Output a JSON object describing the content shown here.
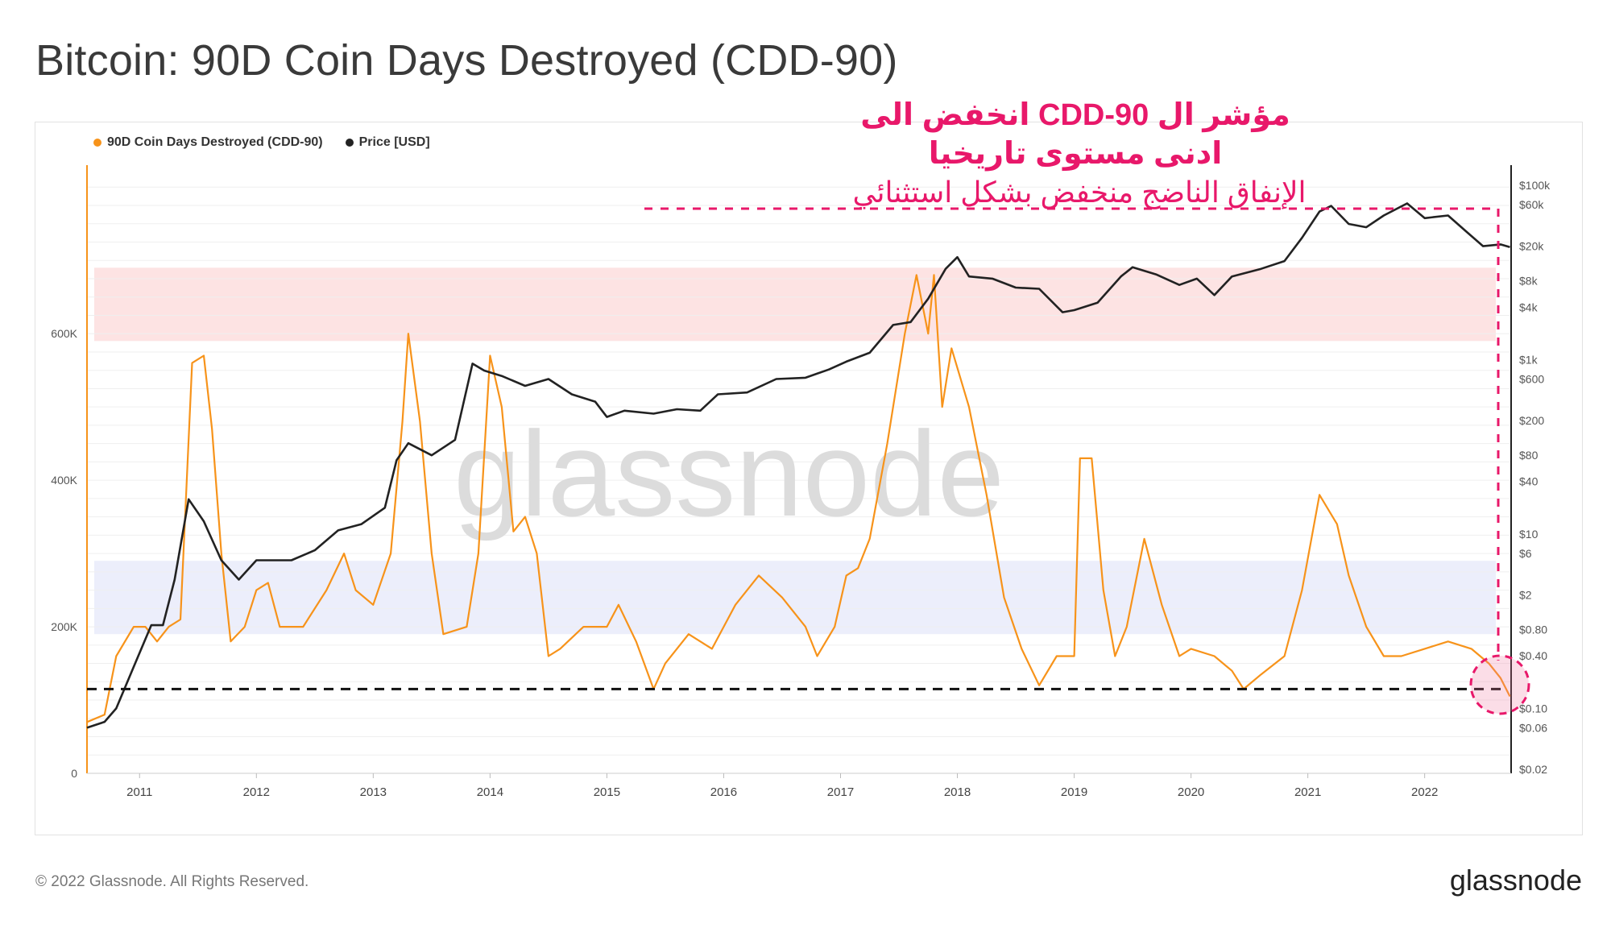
{
  "title": "Bitcoin: 90D Coin Days Destroyed (CDD-90)",
  "legend": [
    {
      "label": "90D Coin Days Destroyed (CDD-90)",
      "color": "#f7931a"
    },
    {
      "label": "Price [USD]",
      "color": "#222222"
    }
  ],
  "annotations": {
    "line1": "مؤشر ال CDD-90 انخفض الى",
    "line2": "ادنى مستوى تاريخيا",
    "line3": "الإنفاق الناضج منخفض بشكل استثنائي",
    "color": "#e8186a"
  },
  "footer": {
    "copyright": "© 2022 Glassnode. All Rights Reserved.",
    "logo": "glassnode"
  },
  "watermark": "glassnode",
  "chart_data": {
    "type": "line",
    "title": "Bitcoin: 90D Coin Days Destroyed (CDD-90)",
    "x_ticks": [
      "2011",
      "2012",
      "2013",
      "2014",
      "2015",
      "2016",
      "2017",
      "2018",
      "2019",
      "2020",
      "2021",
      "2022"
    ],
    "x_range": [
      2010.55,
      2022.74
    ],
    "left_axis": {
      "ticks": [
        "0",
        "200K",
        "400K",
        "600K"
      ],
      "tick_values": [
        0,
        200000,
        400000,
        600000
      ],
      "range": [
        0,
        830000
      ]
    },
    "right_axis": {
      "scale": "log",
      "ticks": [
        "$100k",
        "$60k",
        "$20k",
        "$8k",
        "$4k",
        "$1k",
        "$600",
        "$200",
        "$80",
        "$40",
        "$10",
        "$6",
        "$2",
        "$0.80",
        "$0.40",
        "$0.10",
        "$0.06",
        "$0.02"
      ],
      "tick_values": [
        100000,
        60000,
        20000,
        8000,
        4000,
        1000,
        600,
        200,
        80,
        40,
        10,
        6,
        2,
        0.8,
        0.4,
        0.1,
        0.06,
        0.02
      ]
    },
    "bands": [
      {
        "name": "high",
        "from": 590000,
        "to": 690000,
        "color": "#fde3e3"
      },
      {
        "name": "low",
        "from": 190000,
        "to": 290000,
        "color": "#eceefb"
      }
    ],
    "reference_line": 115000,
    "series": [
      {
        "name": "90D Coin Days Destroyed (CDD-90)",
        "color": "#f7931a",
        "axis": "left",
        "points": [
          [
            2010.55,
            70000
          ],
          [
            2010.7,
            80000
          ],
          [
            2010.8,
            160000
          ],
          [
            2010.95,
            200000
          ],
          [
            2011.05,
            200000
          ],
          [
            2011.15,
            180000
          ],
          [
            2011.25,
            200000
          ],
          [
            2011.35,
            210000
          ],
          [
            2011.45,
            560000
          ],
          [
            2011.55,
            570000
          ],
          [
            2011.62,
            470000
          ],
          [
            2011.7,
            300000
          ],
          [
            2011.78,
            180000
          ],
          [
            2011.9,
            200000
          ],
          [
            2012.0,
            250000
          ],
          [
            2012.1,
            260000
          ],
          [
            2012.2,
            200000
          ],
          [
            2012.4,
            200000
          ],
          [
            2012.6,
            250000
          ],
          [
            2012.75,
            300000
          ],
          [
            2012.85,
            250000
          ],
          [
            2013.0,
            230000
          ],
          [
            2013.15,
            300000
          ],
          [
            2013.25,
            480000
          ],
          [
            2013.3,
            600000
          ],
          [
            2013.4,
            480000
          ],
          [
            2013.5,
            300000
          ],
          [
            2013.6,
            190000
          ],
          [
            2013.8,
            200000
          ],
          [
            2013.9,
            300000
          ],
          [
            2014.0,
            570000
          ],
          [
            2014.1,
            500000
          ],
          [
            2014.2,
            330000
          ],
          [
            2014.3,
            350000
          ],
          [
            2014.4,
            300000
          ],
          [
            2014.5,
            160000
          ],
          [
            2014.6,
            170000
          ],
          [
            2014.8,
            200000
          ],
          [
            2015.0,
            200000
          ],
          [
            2015.1,
            230000
          ],
          [
            2015.25,
            180000
          ],
          [
            2015.4,
            115000
          ],
          [
            2015.5,
            150000
          ],
          [
            2015.7,
            190000
          ],
          [
            2015.9,
            170000
          ],
          [
            2016.1,
            230000
          ],
          [
            2016.3,
            270000
          ],
          [
            2016.5,
            240000
          ],
          [
            2016.7,
            200000
          ],
          [
            2016.8,
            160000
          ],
          [
            2016.95,
            200000
          ],
          [
            2017.05,
            270000
          ],
          [
            2017.15,
            280000
          ],
          [
            2017.25,
            320000
          ],
          [
            2017.4,
            450000
          ],
          [
            2017.55,
            600000
          ],
          [
            2017.65,
            680000
          ],
          [
            2017.75,
            600000
          ],
          [
            2017.8,
            680000
          ],
          [
            2017.87,
            500000
          ],
          [
            2017.95,
            580000
          ],
          [
            2018.1,
            500000
          ],
          [
            2018.25,
            380000
          ],
          [
            2018.4,
            240000
          ],
          [
            2018.55,
            170000
          ],
          [
            2018.7,
            120000
          ],
          [
            2018.85,
            160000
          ],
          [
            2019.0,
            160000
          ],
          [
            2019.05,
            430000
          ],
          [
            2019.15,
            430000
          ],
          [
            2019.25,
            250000
          ],
          [
            2019.35,
            160000
          ],
          [
            2019.45,
            200000
          ],
          [
            2019.6,
            320000
          ],
          [
            2019.75,
            230000
          ],
          [
            2019.9,
            160000
          ],
          [
            2020.0,
            170000
          ],
          [
            2020.2,
            160000
          ],
          [
            2020.35,
            140000
          ],
          [
            2020.45,
            115000
          ],
          [
            2020.6,
            135000
          ],
          [
            2020.8,
            160000
          ],
          [
            2020.95,
            250000
          ],
          [
            2021.1,
            380000
          ],
          [
            2021.25,
            340000
          ],
          [
            2021.35,
            270000
          ],
          [
            2021.5,
            200000
          ],
          [
            2021.65,
            160000
          ],
          [
            2021.8,
            160000
          ],
          [
            2022.0,
            170000
          ],
          [
            2022.2,
            180000
          ],
          [
            2022.4,
            170000
          ],
          [
            2022.55,
            150000
          ],
          [
            2022.65,
            130000
          ],
          [
            2022.73,
            105000
          ]
        ]
      },
      {
        "name": "Price [USD]",
        "color": "#222222",
        "axis": "right",
        "points": [
          [
            2010.55,
            0.06
          ],
          [
            2010.7,
            0.07
          ],
          [
            2010.8,
            0.1
          ],
          [
            2010.95,
            0.3
          ],
          [
            2011.1,
            0.9
          ],
          [
            2011.2,
            0.9
          ],
          [
            2011.3,
            3
          ],
          [
            2011.42,
            25
          ],
          [
            2011.55,
            14
          ],
          [
            2011.7,
            5
          ],
          [
            2011.85,
            3
          ],
          [
            2012.0,
            5
          ],
          [
            2012.3,
            5
          ],
          [
            2012.5,
            6.5
          ],
          [
            2012.7,
            11
          ],
          [
            2012.9,
            13
          ],
          [
            2013.1,
            20
          ],
          [
            2013.2,
            70
          ],
          [
            2013.3,
            110
          ],
          [
            2013.5,
            80
          ],
          [
            2013.7,
            120
          ],
          [
            2013.85,
            900
          ],
          [
            2013.95,
            750
          ],
          [
            2014.1,
            650
          ],
          [
            2014.3,
            500
          ],
          [
            2014.5,
            600
          ],
          [
            2014.7,
            400
          ],
          [
            2014.9,
            330
          ],
          [
            2015.0,
            220
          ],
          [
            2015.15,
            260
          ],
          [
            2015.4,
            240
          ],
          [
            2015.6,
            270
          ],
          [
            2015.8,
            260
          ],
          [
            2015.95,
            400
          ],
          [
            2016.2,
            420
          ],
          [
            2016.45,
            600
          ],
          [
            2016.7,
            620
          ],
          [
            2016.9,
            770
          ],
          [
            2017.05,
            950
          ],
          [
            2017.25,
            1200
          ],
          [
            2017.45,
            2500
          ],
          [
            2017.6,
            2700
          ],
          [
            2017.75,
            5000
          ],
          [
            2017.9,
            11000
          ],
          [
            2018.0,
            15000
          ],
          [
            2018.1,
            9000
          ],
          [
            2018.3,
            8500
          ],
          [
            2018.5,
            6700
          ],
          [
            2018.7,
            6500
          ],
          [
            2018.9,
            3500
          ],
          [
            2019.0,
            3700
          ],
          [
            2019.2,
            4500
          ],
          [
            2019.4,
            9000
          ],
          [
            2019.5,
            11500
          ],
          [
            2019.7,
            9500
          ],
          [
            2019.9,
            7200
          ],
          [
            2020.05,
            8500
          ],
          [
            2020.2,
            5500
          ],
          [
            2020.35,
            9000
          ],
          [
            2020.6,
            11000
          ],
          [
            2020.8,
            13500
          ],
          [
            2020.95,
            25000
          ],
          [
            2021.1,
            50000
          ],
          [
            2021.2,
            58000
          ],
          [
            2021.35,
            36000
          ],
          [
            2021.5,
            33000
          ],
          [
            2021.65,
            45000
          ],
          [
            2021.85,
            62000
          ],
          [
            2022.0,
            42000
          ],
          [
            2022.2,
            45000
          ],
          [
            2022.35,
            30000
          ],
          [
            2022.5,
            20000
          ],
          [
            2022.65,
            21000
          ],
          [
            2022.73,
            19500
          ]
        ]
      }
    ]
  }
}
